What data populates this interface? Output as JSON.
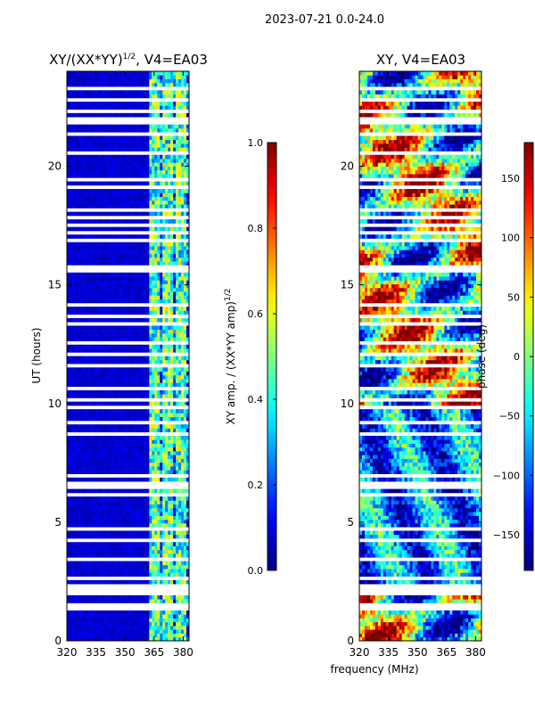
{
  "chart_data": {
    "suptitle": "2023-07-21 0.0-24.0",
    "xlabel": "frequency (MHz)",
    "ylabel": "UT (hours)",
    "xlim": [
      320,
      383
    ],
    "ylim": [
      0,
      24
    ],
    "xticks": [
      320,
      335,
      350,
      365,
      380
    ],
    "yticks": [
      0,
      5,
      10,
      15,
      20
    ],
    "panels": [
      {
        "type": "heatmap",
        "title_base": "XY/(XX*YY)",
        "title_sup": "1/2",
        "title_tail": ", V4=EA03",
        "colorbar_label_base": "XY amp. / (XX*YY amp)",
        "colorbar_label_sup": "1/2",
        "colorbar_range": [
          0.0,
          1.0
        ],
        "colorbar_ticks": [
          "0.0",
          "0.2",
          "0.4",
          "0.6",
          "0.8",
          "1.0"
        ],
        "colorbar_tick_values": [
          0.0,
          0.2,
          0.4,
          0.6,
          0.8,
          1.0
        ],
        "colormap": "jet",
        "low_freq_level": 0.05,
        "high_freq_start_mhz": 363,
        "high_freq_level": 0.45
      },
      {
        "type": "heatmap",
        "title": "XY, V4=EA03",
        "colorbar_label": "phase (deg)",
        "colorbar_range": [
          -180,
          180
        ],
        "colorbar_ticks": [
          "−150",
          "−100",
          "−50",
          "0",
          "50",
          "100",
          "150"
        ],
        "colorbar_tick_values": [
          -150,
          -100,
          -50,
          0,
          50,
          100,
          150
        ],
        "colormap": "jet"
      }
    ],
    "flagged_hours": [
      1.35,
      1.45,
      1.55,
      2.05,
      2.15,
      2.35,
      2.65,
      3.45,
      4.25,
      4.75,
      6.15,
      6.25,
      6.45,
      6.65,
      6.9,
      8.0,
      8.7,
      9.25,
      9.85,
      10.2,
      10.6,
      11.2,
      11.6,
      12.05,
      12.55,
      13.3,
      13.7,
      14.2,
      15.55,
      15.7,
      16.3,
      16.9,
      17.2,
      17.55,
      17.8,
      18.1,
      18.55,
      19.1,
      19.45,
      19.85,
      20.6,
      20.95,
      21.1,
      21.3,
      21.8,
      21.95,
      22.3,
      22.85,
      23.3
    ]
  }
}
